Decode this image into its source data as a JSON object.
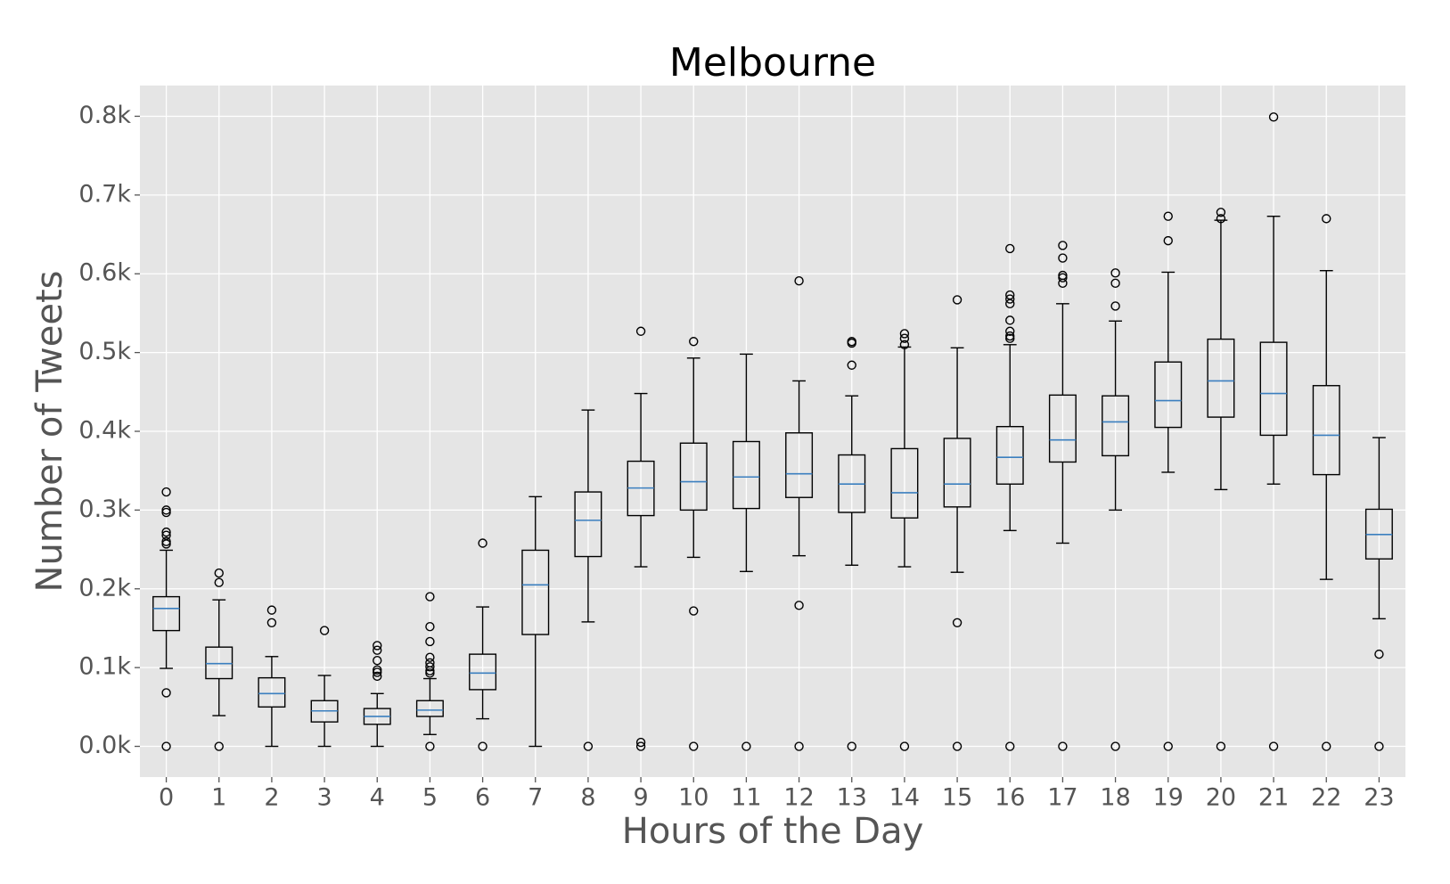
{
  "chart_data": {
    "type": "box",
    "title": "Melbourne",
    "x_label": "Hours of the Day",
    "y_label": "Number of Tweets",
    "categories": [
      "0",
      "1",
      "2",
      "3",
      "4",
      "5",
      "6",
      "7",
      "8",
      "9",
      "10",
      "11",
      "12",
      "13",
      "14",
      "15",
      "16",
      "17",
      "18",
      "19",
      "20",
      "21",
      "22",
      "23"
    ],
    "ylim": [
      -39,
      839
    ],
    "yticks": [
      {
        "value": 0,
        "label": "0.0k"
      },
      {
        "value": 100,
        "label": "0.1k"
      },
      {
        "value": 200,
        "label": "0.2k"
      },
      {
        "value": 300,
        "label": "0.3k"
      },
      {
        "value": 400,
        "label": "0.4k"
      },
      {
        "value": 500,
        "label": "0.5k"
      },
      {
        "value": 600,
        "label": "0.6k"
      },
      {
        "value": 700,
        "label": "0.7k"
      },
      {
        "value": 800,
        "label": "0.8k"
      }
    ],
    "grid": true,
    "box_color": "#000000",
    "median_color": "#3b7fbf",
    "background": "#e5e5e5",
    "boxes": [
      {
        "whisker_low": 99,
        "q1": 147,
        "median": 175,
        "q3": 190,
        "whisker_high": 249,
        "outliers": [
          323,
          300,
          297,
          272,
          268,
          260,
          257,
          68,
          0
        ]
      },
      {
        "whisker_low": 39,
        "q1": 86,
        "median": 105,
        "q3": 126,
        "whisker_high": 186,
        "outliers": [
          220,
          208,
          0
        ]
      },
      {
        "whisker_low": 0,
        "q1": 50,
        "median": 67,
        "q3": 87,
        "whisker_high": 114,
        "outliers": [
          173,
          157
        ]
      },
      {
        "whisker_low": 0,
        "q1": 31,
        "median": 45,
        "q3": 58,
        "whisker_high": 90,
        "outliers": [
          147
        ]
      },
      {
        "whisker_low": 0,
        "q1": 28,
        "median": 38,
        "q3": 48,
        "whisker_high": 67,
        "outliers": [
          128,
          122,
          109,
          97,
          94,
          89
        ]
      },
      {
        "whisker_low": 15,
        "q1": 38,
        "median": 46,
        "q3": 58,
        "whisker_high": 86,
        "outliers": [
          190,
          152,
          133,
          113,
          106,
          101,
          96,
          93,
          0
        ]
      },
      {
        "whisker_low": 35,
        "q1": 72,
        "median": 93,
        "q3": 117,
        "whisker_high": 177,
        "outliers": [
          258,
          0
        ]
      },
      {
        "whisker_low": 0,
        "q1": 142,
        "median": 205,
        "q3": 249,
        "whisker_high": 317,
        "outliers": []
      },
      {
        "whisker_low": 158,
        "q1": 241,
        "median": 287,
        "q3": 323,
        "whisker_high": 427,
        "outliers": [
          0
        ]
      },
      {
        "whisker_low": 228,
        "q1": 293,
        "median": 328,
        "q3": 362,
        "whisker_high": 448,
        "outliers": [
          527,
          5,
          0
        ]
      },
      {
        "whisker_low": 240,
        "q1": 300,
        "median": 336,
        "q3": 385,
        "whisker_high": 493,
        "outliers": [
          514,
          172,
          0
        ]
      },
      {
        "whisker_low": 222,
        "q1": 302,
        "median": 342,
        "q3": 387,
        "whisker_high": 498,
        "outliers": [
          0
        ]
      },
      {
        "whisker_low": 242,
        "q1": 316,
        "median": 346,
        "q3": 398,
        "whisker_high": 464,
        "outliers": [
          591,
          179,
          0
        ]
      },
      {
        "whisker_low": 230,
        "q1": 297,
        "median": 333,
        "q3": 370,
        "whisker_high": 445,
        "outliers": [
          514,
          512,
          484,
          0
        ]
      },
      {
        "whisker_low": 228,
        "q1": 290,
        "median": 322,
        "q3": 378,
        "whisker_high": 507,
        "outliers": [
          524,
          518,
          510,
          0
        ]
      },
      {
        "whisker_low": 221,
        "q1": 304,
        "median": 333,
        "q3": 391,
        "whisker_high": 506,
        "outliers": [
          567,
          157,
          0
        ]
      },
      {
        "whisker_low": 274,
        "q1": 333,
        "median": 367,
        "q3": 406,
        "whisker_high": 510,
        "outliers": [
          632,
          573,
          568,
          562,
          541,
          527,
          521,
          518,
          0
        ]
      },
      {
        "whisker_low": 258,
        "q1": 361,
        "median": 389,
        "q3": 446,
        "whisker_high": 562,
        "outliers": [
          636,
          620,
          598,
          595,
          588,
          0
        ]
      },
      {
        "whisker_low": 300,
        "q1": 369,
        "median": 412,
        "q3": 445,
        "whisker_high": 540,
        "outliers": [
          601,
          588,
          559,
          0
        ]
      },
      {
        "whisker_low": 348,
        "q1": 405,
        "median": 439,
        "q3": 488,
        "whisker_high": 602,
        "outliers": [
          673,
          642,
          0
        ]
      },
      {
        "whisker_low": 326,
        "q1": 418,
        "median": 464,
        "q3": 517,
        "whisker_high": 668,
        "outliers": [
          678,
          670,
          0
        ]
      },
      {
        "whisker_low": 333,
        "q1": 395,
        "median": 448,
        "q3": 513,
        "whisker_high": 673,
        "outliers": [
          799,
          0
        ]
      },
      {
        "whisker_low": 212,
        "q1": 345,
        "median": 395,
        "q3": 458,
        "whisker_high": 604,
        "outliers": [
          670,
          0
        ]
      },
      {
        "whisker_low": 162,
        "q1": 238,
        "median": 269,
        "q3": 301,
        "whisker_high": 392,
        "outliers": [
          117,
          0
        ]
      }
    ]
  }
}
